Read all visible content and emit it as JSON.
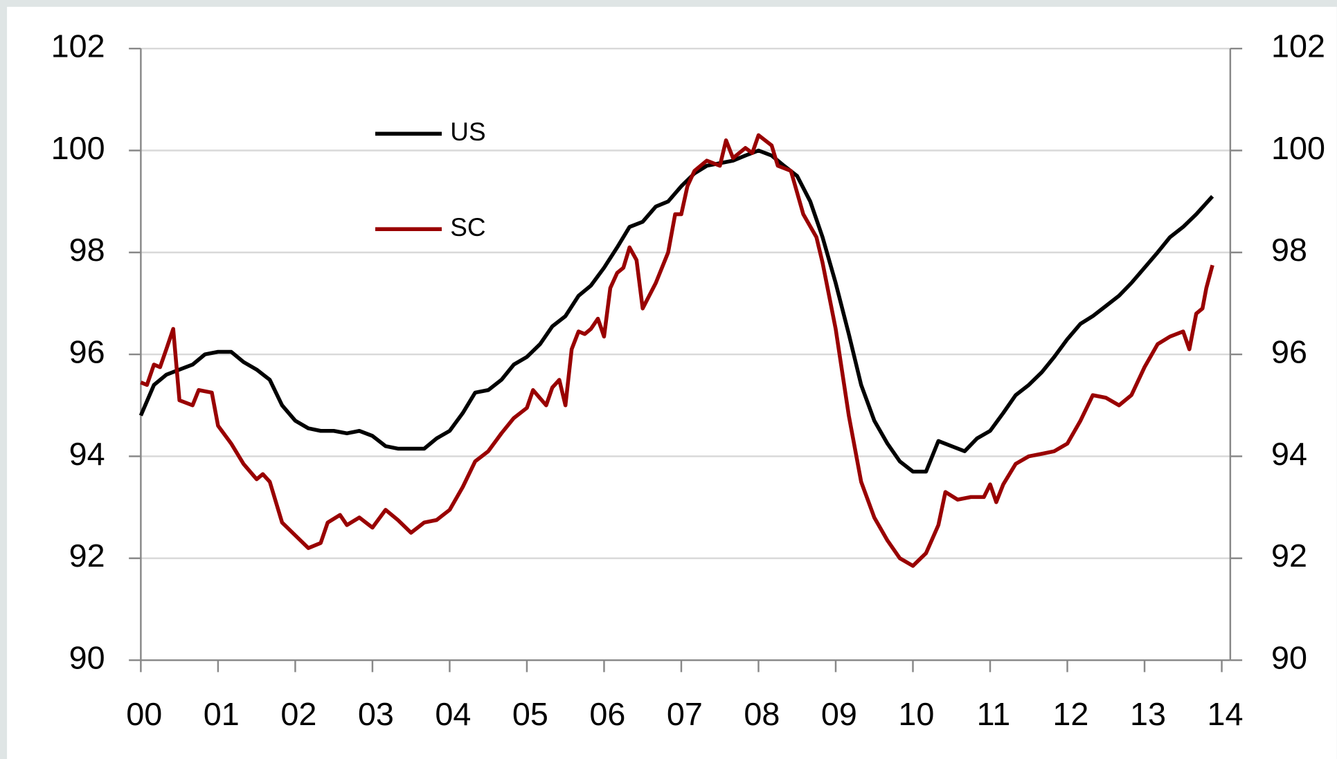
{
  "chart_data": {
    "type": "line",
    "xlim": [
      0,
      14
    ],
    "xticks": [
      {
        "value": 0,
        "label": "00"
      },
      {
        "value": 1,
        "label": "01"
      },
      {
        "value": 2,
        "label": "02"
      },
      {
        "value": 3,
        "label": "03"
      },
      {
        "value": 4,
        "label": "04"
      },
      {
        "value": 5,
        "label": "05"
      },
      {
        "value": 6,
        "label": "06"
      },
      {
        "value": 7,
        "label": "07"
      },
      {
        "value": 8,
        "label": "08"
      },
      {
        "value": 9,
        "label": "09"
      },
      10,
      11,
      12,
      13,
      14
    ],
    "ylim": [
      90,
      102
    ],
    "yticks": [
      90,
      92,
      94,
      96,
      98,
      100,
      102
    ],
    "y2lim": [
      90,
      102
    ],
    "y2ticks": [
      90,
      92,
      94,
      96,
      98,
      100,
      102
    ],
    "grid": true,
    "series": [
      {
        "name": "US",
        "color": "#000000",
        "x": [
          0,
          0.17,
          0.33,
          0.5,
          0.67,
          0.83,
          1.0,
          1.17,
          1.33,
          1.5,
          1.67,
          1.83,
          2.0,
          2.17,
          2.33,
          2.5,
          2.67,
          2.83,
          3.0,
          3.17,
          3.33,
          3.5,
          3.67,
          3.83,
          4.0,
          4.17,
          4.33,
          4.5,
          4.67,
          4.83,
          5.0,
          5.17,
          5.33,
          5.5,
          5.67,
          5.83,
          6.0,
          6.17,
          6.33,
          6.5,
          6.67,
          6.83,
          7.0,
          7.17,
          7.33,
          7.5,
          7.67,
          7.83,
          8.0,
          8.17,
          8.33,
          8.5,
          8.67,
          8.83,
          9.0,
          9.17,
          9.33,
          9.5,
          9.67,
          9.83,
          10.0,
          10.17,
          10.33,
          10.5,
          10.67,
          10.83,
          11.0,
          11.17,
          11.33,
          11.5,
          11.67,
          11.83,
          12.0,
          12.17,
          12.33,
          12.5,
          12.67,
          12.83,
          13.0,
          13.17,
          13.33,
          13.5,
          13.67,
          13.88
        ],
        "values": [
          94.8,
          95.4,
          95.6,
          95.7,
          95.8,
          96.0,
          96.05,
          96.05,
          95.85,
          95.7,
          95.5,
          95.0,
          94.7,
          94.55,
          94.5,
          94.5,
          94.45,
          94.5,
          94.4,
          94.2,
          94.15,
          94.15,
          94.15,
          94.35,
          94.5,
          94.85,
          95.25,
          95.3,
          95.5,
          95.8,
          95.95,
          96.2,
          96.55,
          96.75,
          97.15,
          97.35,
          97.7,
          98.1,
          98.5,
          98.6,
          98.9,
          99.0,
          99.3,
          99.55,
          99.7,
          99.75,
          99.8,
          99.9,
          100.0,
          99.9,
          99.7,
          99.5,
          99.0,
          98.3,
          97.4,
          96.4,
          95.4,
          94.7,
          94.25,
          93.9,
          93.7,
          93.7,
          94.3,
          94.2,
          94.1,
          94.35,
          94.5,
          94.85,
          95.2,
          95.4,
          95.65,
          95.95,
          96.3,
          96.6,
          96.75,
          96.95,
          97.15,
          97.4,
          97.7,
          98.0,
          98.3,
          98.5,
          98.75,
          99.1
        ]
      },
      {
        "name": "SC",
        "color": "#990000",
        "x": [
          0,
          0.08,
          0.17,
          0.25,
          0.33,
          0.42,
          0.5,
          0.67,
          0.75,
          0.92,
          1.0,
          1.17,
          1.33,
          1.5,
          1.58,
          1.67,
          1.83,
          2.0,
          2.17,
          2.33,
          2.42,
          2.58,
          2.67,
          2.83,
          3.0,
          3.17,
          3.33,
          3.5,
          3.67,
          3.83,
          4.0,
          4.17,
          4.33,
          4.5,
          4.67,
          4.83,
          5.0,
          5.08,
          5.25,
          5.33,
          5.42,
          5.5,
          5.58,
          5.67,
          5.75,
          5.83,
          5.92,
          6.0,
          6.08,
          6.17,
          6.25,
          6.33,
          6.42,
          6.5,
          6.67,
          6.83,
          6.92,
          7.0,
          7.08,
          7.17,
          7.33,
          7.5,
          7.58,
          7.67,
          7.83,
          7.92,
          8.0,
          8.17,
          8.25,
          8.42,
          8.58,
          8.75,
          8.83,
          9.0,
          9.17,
          9.33,
          9.5,
          9.67,
          9.83,
          10.0,
          10.17,
          10.33,
          10.42,
          10.58,
          10.75,
          10.92,
          11.0,
          11.08,
          11.17,
          11.33,
          11.5,
          11.67,
          11.83,
          12.0,
          12.17,
          12.33,
          12.5,
          12.67,
          12.83,
          13.0,
          13.17,
          13.33,
          13.5,
          13.58,
          13.67,
          13.75,
          13.8,
          13.88
        ],
        "values": [
          95.45,
          95.4,
          95.8,
          95.75,
          96.1,
          96.5,
          95.1,
          95.0,
          95.3,
          95.25,
          94.6,
          94.25,
          93.85,
          93.55,
          93.65,
          93.5,
          92.7,
          92.45,
          92.2,
          92.3,
          92.7,
          92.85,
          92.65,
          92.8,
          92.6,
          92.95,
          92.75,
          92.5,
          92.7,
          92.75,
          92.95,
          93.4,
          93.9,
          94.1,
          94.45,
          94.75,
          94.95,
          95.3,
          95.0,
          95.35,
          95.5,
          95.0,
          96.1,
          96.45,
          96.4,
          96.5,
          96.7,
          96.35,
          97.3,
          97.6,
          97.7,
          98.1,
          97.85,
          96.9,
          97.4,
          98.0,
          98.75,
          98.75,
          99.3,
          99.6,
          99.8,
          99.7,
          100.2,
          99.85,
          100.05,
          99.95,
          100.3,
          100.1,
          99.7,
          99.6,
          98.75,
          98.3,
          97.8,
          96.5,
          94.8,
          93.5,
          92.8,
          92.35,
          92.0,
          91.85,
          92.1,
          92.65,
          93.3,
          93.15,
          93.2,
          93.2,
          93.45,
          93.1,
          93.45,
          93.85,
          94.0,
          94.05,
          94.1,
          94.25,
          94.7,
          95.2,
          95.15,
          95.0,
          95.2,
          95.75,
          96.2,
          96.35,
          96.45,
          96.1,
          96.8,
          96.9,
          97.3,
          97.75
        ]
      }
    ]
  }
}
